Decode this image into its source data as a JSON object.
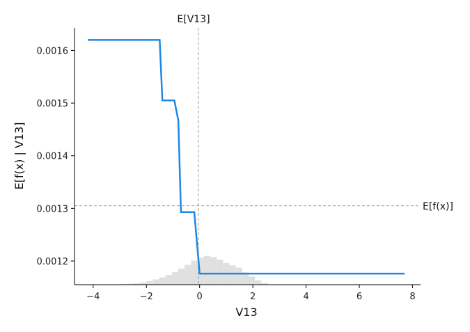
{
  "chart_data": {
    "type": "line",
    "xlabel": "V13",
    "ylabel": "E[f(x) | V13]",
    "xlim": [
      -4.7,
      8.3
    ],
    "ylim": [
      0.001155,
      0.001643
    ],
    "xticks": [
      -4,
      -2,
      0,
      2,
      4,
      6,
      8
    ],
    "xtick_labels": [
      "−4",
      "−2",
      "0",
      "2",
      "4",
      "6",
      "8"
    ],
    "yticks": [
      0.0012,
      0.0013,
      0.0014,
      0.0015,
      0.0016
    ],
    "ytick_labels": [
      "0.0012",
      "0.0013",
      "0.0014",
      "0.0015",
      "0.0016"
    ],
    "series": [
      {
        "color": "#1e88e5",
        "x": [
          -4.2,
          -1.5,
          -1.4,
          -0.95,
          -0.8,
          -0.7,
          -0.2,
          0.0,
          7.7
        ],
        "y": [
          0.00162,
          0.00162,
          0.001505,
          0.001505,
          0.001467,
          0.001293,
          0.001293,
          0.001176,
          0.001176
        ]
      }
    ],
    "reference_lines": {
      "vertical": {
        "label": "E[V13]",
        "x": -0.05,
        "color": "#999999"
      },
      "horizontal": {
        "label": "E[f(x)]",
        "y": 0.001305,
        "color": "#999999"
      }
    },
    "histogram": {
      "color": "#e0e0e0",
      "bin_start": -3.2,
      "bin_width": 0.24,
      "heights": [
        0.01,
        0.02,
        0.03,
        0.05,
        0.08,
        0.12,
        0.18,
        0.25,
        0.33,
        0.43,
        0.55,
        0.68,
        0.82,
        0.93,
        0.98,
        0.95,
        0.86,
        0.74,
        0.66,
        0.58,
        0.42,
        0.28,
        0.15,
        0.06
      ]
    },
    "grid": false
  }
}
